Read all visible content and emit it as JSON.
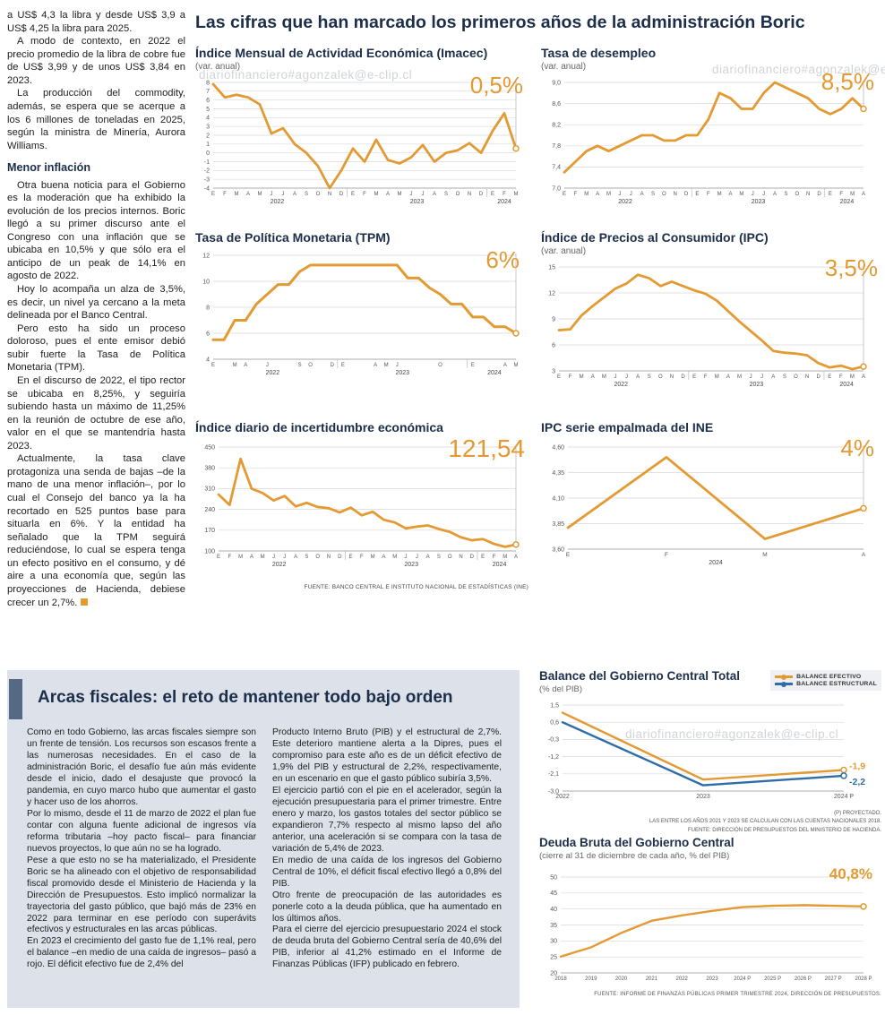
{
  "meta": {
    "watermark": "diariofinanciero#agonzalek@e-clip.cl"
  },
  "colors": {
    "accent": "#E39A33",
    "navy": "#1C2E4A",
    "blue": "#2E6DA8",
    "panel_bg": "#DDE2EA"
  },
  "left_article": {
    "intro_paragraphs": [
      "a US$ 4,3 la libra y desde US$ 3,9 a US$ 4,25 la libra para 2025.",
      "A modo de contexto, en 2022 el precio promedio de la libra de cobre fue de US$ 3,99 y de unos US$ 3,84 en 2023.",
      "La producción del commodity, además, se espera que se acerque a los 6 millones de toneladas en 2025, según la ministra de Minería, Aurora Williams."
    ],
    "subhead": "Menor inflación",
    "body_paragraphs": [
      "Otra buena noticia para el Gobierno es la moderación que ha exhibido la evolución de los precios internos. Boric llegó a su primer discurso ante el Congreso con una inflación que se ubicaba en 10,5% y que sólo era el anticipo de un peak de 14,1% en agosto de 2022.",
      "Hoy lo acompaña un alza de 3,5%, es decir, un nivel ya cercano a la meta delineada por el Banco Central.",
      "Pero esto ha sido un proceso doloroso, pues el ente emisor debió subir fuerte la Tasa de Política Monetaria (TPM).",
      "En el discurso de 2022, el tipo rector se ubicaba en 8,25%, y seguiría subiendo hasta un máximo de 11,25% en la reunión de octubre de ese año, valor en el que se mantendría hasta 2023.",
      "Actualmente, la tasa clave protagoniza una senda de bajas –de la mano de una menor inflación–, por lo cual el Consejo del banco ya la ha recortado en 525 puntos base para situarla en 6%. Y la entidad ha señalado que la TPM seguirá reduciéndose, lo cual se espera tenga un efecto positivo en el consumo, y dé aire a una economía que, según las proyecciones de Hacienda, debiese crecer un 2,7%."
    ]
  },
  "main": {
    "title": "Las cifras que han marcado los primeros años de la administración Boric",
    "source": "FUENTE: BANCO CENTRAL E INSTITUTO NACIONAL DE ESTADÍSTICAS (INE)"
  },
  "fiscal_section": {
    "title": "Arcas fiscales: el reto de mantener todo bajo orden",
    "col1_paragraphs": [
      "Como en todo Gobierno, las arcas fiscales siempre son un frente de tensión. Los recursos son escasos frente a las numerosas necesidades. En el caso de la administración Boric, el desafío fue aún más evidente desde el inicio, dado el desajuste que provocó la pandemia, en cuyo marco hubo que aumentar el gasto y hacer uso de los ahorros.",
      "Por lo mismo, desde el 11 de marzo de 2022 el plan fue contar con alguna fuente adicional de ingresos vía reforma tributaria –hoy pacto fiscal– para financiar nuevos proyectos, lo que aún no se ha logrado.",
      "Pese a que esto no se ha materializado, el Presidente Boric se ha alineado con el objetivo de responsabilidad fiscal promovido desde el Ministerio de Hacienda y la Dirección de Presupuestos. Esto implicó normalizar la trayectoria del gasto público, que bajó más de 23% en 2022 para terminar en ese período con superávits efectivos y estructurales en las arcas públicas.",
      "En 2023 el crecimiento del gasto fue de 1,1% real, pero el balance –en medio de una caída de ingresos– pasó a rojo. El déficit efectivo fue de 2,4% del"
    ],
    "col2_paragraphs": [
      "Producto Interno Bruto (PIB) y el estructural de 2,7%. Este deterioro mantiene alerta a la Dipres, pues el compromiso para este año es de un déficit efectivo de 1,9% del PIB y estructural de 2,2%, respectivamente, en un escenario en que el gasto público subiría 3,5%.",
      "El ejercicio partió con el pie en el acelerador, según la ejecución presupuestaria para el primer trimestre. Entre enero y marzo, los gastos totales del sector público se expandieron 7,7% respecto al mismo lapso del año anterior, una aceleración si se compara con la tasa de variación de 5,4% de 2023.",
      "En medio de una caída de los ingresos del Gobierno Central de 10%, el déficit fiscal efectivo llegó a 0,8% del PIB.",
      "Otro frente de preocupación de las autoridades es ponerle coto a la deuda pública, que ha aumentado en los últimos años.",
      "Para el cierre del ejercicio presupuestario 2024 el stock de deuda bruta del Gobierno Central sería de 40,6% del PIB, inferior al 41,2% estimado en el Informe de Finanzas Públicas (IFP) publicado en febrero."
    ]
  },
  "chart_data": [
    {
      "id": "imacec",
      "type": "line",
      "title": "Índice Mensual de Actividad Económica (Imacec)",
      "subtitle": "(var. anual)",
      "callout": "0,5%",
      "ylim": [
        -4,
        8
      ],
      "yticks": [
        {
          "v": 8,
          "label": "8"
        },
        {
          "v": 7,
          "label": "7"
        },
        {
          "v": 6,
          "label": "6"
        },
        {
          "v": 5,
          "label": "5"
        },
        {
          "v": 4,
          "label": "4"
        },
        {
          "v": 3,
          "label": "3"
        },
        {
          "v": 2,
          "label": "2"
        },
        {
          "v": 1,
          "label": "1"
        },
        {
          "v": 0,
          "label": "0"
        },
        {
          "v": -1,
          "label": "-1"
        },
        {
          "v": -2,
          "label": "-2"
        },
        {
          "v": -3,
          "label": "-3"
        },
        {
          "v": -4,
          "label": "-4"
        }
      ],
      "x": [
        "E",
        "F",
        "M",
        "A",
        "M",
        "J",
        "J",
        "A",
        "S",
        "O",
        "N",
        "D",
        "E",
        "F",
        "M",
        "A",
        "M",
        "J",
        "J",
        "A",
        "S",
        "O",
        "N",
        "D",
        "E",
        "F",
        "M"
      ],
      "year_groups": [
        {
          "label": "2022",
          "from": 0,
          "to": 11
        },
        {
          "label": "2023",
          "from": 12,
          "to": 23
        },
        {
          "label": "2024",
          "from": 24,
          "to": 26
        }
      ],
      "drop_line": true,
      "series": [
        {
          "name": "Imacec",
          "color": "#E39A33",
          "values": [
            7.8,
            6.3,
            6.6,
            6.3,
            5.5,
            2.2,
            2.8,
            1.0,
            0.0,
            -1.5,
            -4.0,
            -2.0,
            0.5,
            -1.0,
            1.5,
            -0.8,
            -1.2,
            -0.5,
            0.9,
            -1.0,
            0.0,
            0.3,
            1.1,
            0.0,
            2.5,
            4.5,
            0.5
          ]
        }
      ]
    },
    {
      "id": "desempleo",
      "type": "line",
      "title": "Tasa de desempleo",
      "subtitle": "(var. anual)",
      "callout": "8,5%",
      "ylim": [
        7.0,
        9.0
      ],
      "yticks": [
        {
          "v": 9.0,
          "label": "9,0"
        },
        {
          "v": 8.6,
          "label": "8,6"
        },
        {
          "v": 8.2,
          "label": "8,2"
        },
        {
          "v": 7.8,
          "label": "7,8"
        },
        {
          "v": 7.4,
          "label": "7,4"
        },
        {
          "v": 7.0,
          "label": "7,0"
        }
      ],
      "x": [
        "E",
        "F",
        "M",
        "A",
        "M",
        "J",
        "J",
        "A",
        "S",
        "O",
        "N",
        "D",
        "E",
        "F",
        "M",
        "A",
        "M",
        "J",
        "J",
        "A",
        "S",
        "O",
        "N",
        "D",
        "E",
        "F",
        "M",
        "A"
      ],
      "year_groups": [
        {
          "label": "2022",
          "from": 0,
          "to": 11
        },
        {
          "label": "2023",
          "from": 12,
          "to": 23
        },
        {
          "label": "2024",
          "from": 24,
          "to": 27
        }
      ],
      "drop_line": true,
      "series": [
        {
          "name": "Tasa de desempleo",
          "color": "#E39A33",
          "values": [
            7.3,
            7.5,
            7.7,
            7.8,
            7.7,
            7.8,
            7.9,
            8.0,
            8.0,
            7.9,
            7.9,
            8.0,
            8.0,
            8.3,
            8.8,
            8.7,
            8.5,
            8.5,
            8.8,
            9.0,
            8.9,
            8.8,
            8.7,
            8.5,
            8.4,
            8.5,
            8.7,
            8.5
          ]
        }
      ]
    },
    {
      "id": "tpm",
      "type": "line",
      "title": "Tasa de Política Monetaria (TPM)",
      "subtitle": "",
      "callout": "6%",
      "ylim": [
        4,
        12
      ],
      "yticks": [
        {
          "v": 12,
          "label": "12"
        },
        {
          "v": 10,
          "label": "10"
        },
        {
          "v": 8,
          "label": "8"
        },
        {
          "v": 6,
          "label": "6"
        },
        {
          "v": 4,
          "label": "4"
        }
      ],
      "x": [
        "E",
        "",
        "M",
        "A",
        "",
        "J",
        "",
        "",
        "S",
        "O",
        "",
        "D",
        "E",
        "",
        "",
        "A",
        "M",
        "J",
        "",
        "",
        "",
        "O",
        "",
        "",
        "E",
        "",
        "",
        "A",
        "M"
      ],
      "year_groups": [
        {
          "label": "2022",
          "from": 0,
          "to": 11
        },
        {
          "label": "2023",
          "from": 12,
          "to": 23
        },
        {
          "label": "2024",
          "from": 24,
          "to": 28
        }
      ],
      "drop_line": true,
      "series": [
        {
          "name": "TPM",
          "color": "#E39A33",
          "values": [
            5.5,
            5.5,
            7.0,
            7.0,
            8.25,
            9.0,
            9.75,
            9.75,
            10.75,
            11.25,
            11.25,
            11.25,
            11.25,
            11.25,
            11.25,
            11.25,
            11.25,
            11.25,
            10.25,
            10.25,
            9.5,
            9.0,
            8.25,
            8.25,
            7.25,
            7.25,
            6.5,
            6.5,
            6.0
          ]
        }
      ]
    },
    {
      "id": "ipc",
      "type": "line",
      "title": "Índice de Precios al Consumidor (IPC)",
      "subtitle": "(var. anual)",
      "callout": "3,5%",
      "ylim": [
        3,
        15
      ],
      "yticks": [
        {
          "v": 15,
          "label": "15"
        },
        {
          "v": 12,
          "label": "12"
        },
        {
          "v": 9,
          "label": "9"
        },
        {
          "v": 6,
          "label": "6"
        },
        {
          "v": 3,
          "label": "3"
        }
      ],
      "x": [
        "E",
        "F",
        "M",
        "A",
        "M",
        "J",
        "J",
        "A",
        "S",
        "O",
        "N",
        "D",
        "E",
        "F",
        "M",
        "A",
        "M",
        "J",
        "J",
        "A",
        "S",
        "O",
        "N",
        "D",
        "E",
        "F",
        "M",
        "A"
      ],
      "year_groups": [
        {
          "label": "2022",
          "from": 0,
          "to": 11
        },
        {
          "label": "2023",
          "from": 12,
          "to": 23
        },
        {
          "label": "2024",
          "from": 24,
          "to": 27
        }
      ],
      "drop_line": true,
      "series": [
        {
          "name": "IPC",
          "color": "#E39A33",
          "values": [
            7.7,
            7.8,
            9.4,
            10.5,
            11.5,
            12.5,
            13.1,
            14.1,
            13.7,
            12.8,
            13.3,
            12.8,
            12.3,
            11.9,
            11.1,
            9.9,
            8.7,
            7.6,
            6.5,
            5.3,
            5.1,
            5.0,
            4.8,
            3.9,
            3.4,
            3.6,
            3.2,
            3.5
          ]
        }
      ]
    },
    {
      "id": "incertidumbre",
      "type": "line",
      "title": "Índice diario de incertidumbre económica",
      "subtitle": "",
      "callout": "121,54",
      "ylim": [
        100,
        450
      ],
      "yticks": [
        {
          "v": 450,
          "label": "450"
        },
        {
          "v": 380,
          "label": "380"
        },
        {
          "v": 310,
          "label": "310"
        },
        {
          "v": 240,
          "label": "240"
        },
        {
          "v": 170,
          "label": "170"
        },
        {
          "v": 100,
          "label": "100"
        }
      ],
      "x": [
        "E",
        "F",
        "M",
        "A",
        "M",
        "J",
        "J",
        "A",
        "S",
        "O",
        "N",
        "D",
        "E",
        "F",
        "M",
        "A",
        "M",
        "J",
        "J",
        "A",
        "S",
        "O",
        "N",
        "D",
        "E",
        "F",
        "M",
        "A"
      ],
      "year_groups": [
        {
          "label": "2022",
          "from": 0,
          "to": 11
        },
        {
          "label": "2023",
          "from": 12,
          "to": 23
        },
        {
          "label": "2024",
          "from": 24,
          "to": 27
        }
      ],
      "drop_line": true,
      "series": [
        {
          "name": "Incertidumbre económica",
          "color": "#E39A33",
          "values": [
            290,
            255,
            410,
            310,
            295,
            270,
            285,
            250,
            262,
            248,
            244,
            230,
            246,
            220,
            232,
            205,
            196,
            176,
            182,
            186,
            174,
            164,
            146,
            136,
            140,
            124,
            114,
            121.54
          ]
        }
      ]
    },
    {
      "id": "ipc_ine",
      "type": "line",
      "title": "IPC serie empalmada del INE",
      "subtitle": "",
      "callout": "4%",
      "ylim": [
        3.6,
        4.6
      ],
      "yticks": [
        {
          "v": 4.6,
          "label": "4,60"
        },
        {
          "v": 4.35,
          "label": "4,35"
        },
        {
          "v": 4.1,
          "label": "4,10"
        },
        {
          "v": 3.85,
          "label": "3,85"
        },
        {
          "v": 3.6,
          "label": "3,60"
        }
      ],
      "x": [
        "E",
        "F",
        "M",
        "A"
      ],
      "year_groups": [
        {
          "label": "2024",
          "from": 0,
          "to": 3
        }
      ],
      "drop_line": true,
      "series": [
        {
          "name": "IPC serie empalmada",
          "color": "#E39A33",
          "values": [
            3.81,
            4.5,
            3.7,
            4.0
          ]
        }
      ]
    },
    {
      "id": "balance",
      "type": "line",
      "title": "Balance del Gobierno Central Total",
      "subtitle": "(% del PIB)",
      "ylim": [
        -3.0,
        1.5
      ],
      "yticks": [
        {
          "v": 1.5,
          "label": "1,5"
        },
        {
          "v": 0.6,
          "label": "0,6"
        },
        {
          "v": -0.3,
          "label": "-0,3"
        },
        {
          "v": -1.2,
          "label": "-1,2"
        },
        {
          "v": -2.1,
          "label": "-2,1"
        },
        {
          "v": -3.0,
          "label": "-3,0"
        }
      ],
      "x": [
        "2022",
        "2023",
        "2024 P"
      ],
      "drop_line": false,
      "series": [
        {
          "name": "BALANCE EFECTIVO",
          "color": "#E39A33",
          "values": [
            1.1,
            -2.4,
            -1.9
          ],
          "end_label": {
            "text": "-1,9",
            "dy": -1,
            "size": 10.5
          }
        },
        {
          "name": "BALANCE ESTRUCTURAL",
          "color": "#2E6DA8",
          "values": [
            0.6,
            -2.7,
            -2.2
          ],
          "end_label": {
            "text": "-2,2",
            "dy": 10,
            "size": 10.5
          }
        }
      ],
      "notes": [
        "(P) PROYECTADO.",
        "LAS ENTRE LOS AÑOS 2021 Y 2023 SE CALCULAN  CON LAS CUENTAS NACIONALES 2018.",
        "FUENTE: DIRECCIÓN DE PRESUPUESTOS DEL MINISTERIO DE HACIENDA."
      ]
    },
    {
      "id": "deuda",
      "type": "line",
      "title": "Deuda Bruta del Gobierno Central",
      "subtitle": "(cierre al 31 de diciembre de cada año, % del PIB)",
      "callout": "40,8%",
      "ylim": [
        20,
        50
      ],
      "yticks": [
        {
          "v": 50,
          "label": "50"
        },
        {
          "v": 45,
          "label": "45"
        },
        {
          "v": 40,
          "label": "40"
        },
        {
          "v": 35,
          "label": "35"
        },
        {
          "v": 30,
          "label": "30"
        },
        {
          "v": 25,
          "label": "25"
        },
        {
          "v": 20,
          "label": "20"
        }
      ],
      "x": [
        "2018",
        "2019",
        "2020",
        "2021",
        "2022",
        "2023",
        "2024 P",
        "2025 P",
        "2026 P",
        "2027 P",
        "2028 P"
      ],
      "drop_line": false,
      "series": [
        {
          "name": "Deuda bruta",
          "color": "#E39A33",
          "values": [
            25.1,
            28.0,
            32.5,
            36.3,
            38.0,
            39.4,
            40.6,
            41.0,
            41.2,
            41.0,
            40.8
          ]
        }
      ],
      "source": "FUENTE: INFORME DE FINANZAS PÚBLICAS PRIMER TRIMESTRE 2024, DIRECCIÓN DE PRESUPUESTOS."
    }
  ]
}
